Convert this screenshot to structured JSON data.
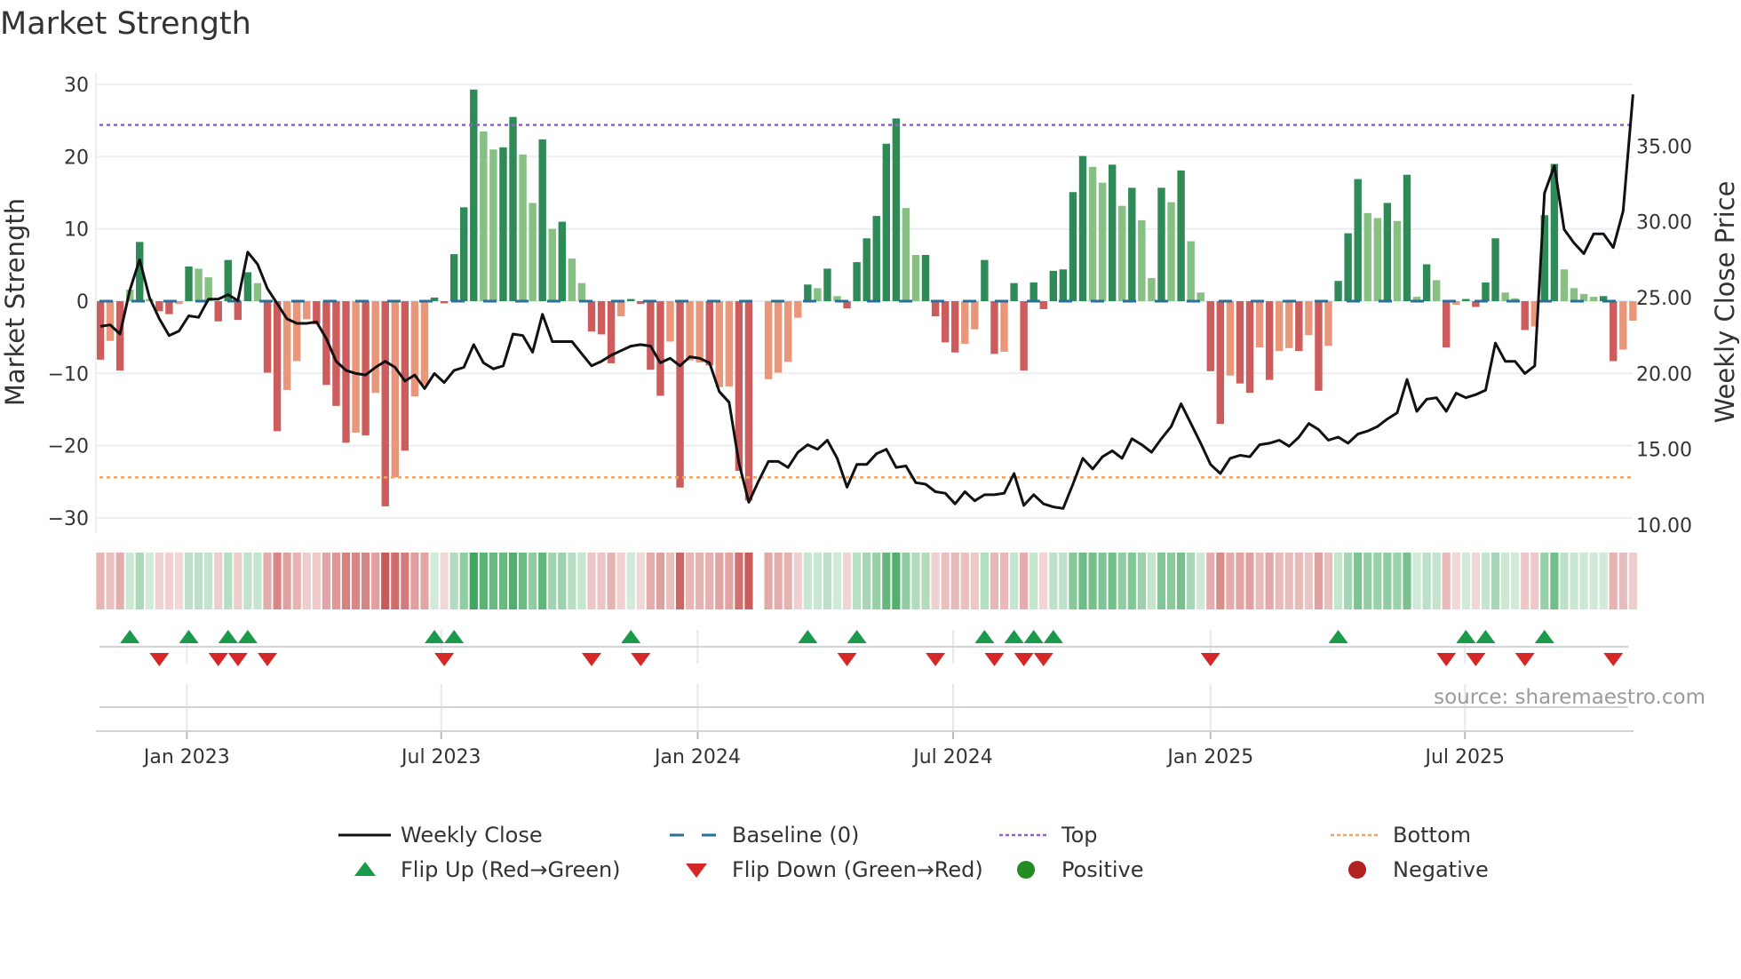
{
  "title": "Market Strength",
  "source": "source: sharemaestro.com",
  "chart_data": {
    "type": "bar",
    "title": "Market Strength",
    "ylabel": "Market Strength",
    "ylabel_right": "Weekly Close Price",
    "ylim": [
      -30,
      30
    ],
    "ylim_right": [
      10,
      35
    ],
    "yticks": [
      {
        "v": 30,
        "label": "30"
      },
      {
        "v": 20,
        "label": "20"
      },
      {
        "v": 10,
        "label": "10"
      },
      {
        "v": 0,
        "label": "0"
      },
      {
        "v": -10,
        "label": "−10"
      },
      {
        "v": -20,
        "label": "−20"
      },
      {
        "v": -30,
        "label": "−30"
      }
    ],
    "yticks_right": [
      {
        "v": 35,
        "label": "35.00"
      },
      {
        "v": 30,
        "label": "30.00"
      },
      {
        "v": 25,
        "label": "25.00"
      },
      {
        "v": 20,
        "label": "20.00"
      },
      {
        "v": 15,
        "label": "15.00"
      },
      {
        "v": 10,
        "label": "10.00"
      }
    ],
    "xticks": [
      {
        "week": 8.8,
        "label": "Jan 2023"
      },
      {
        "week": 34.7,
        "label": "Jul 2023"
      },
      {
        "week": 60.8,
        "label": "Jan 2024"
      },
      {
        "week": 86.8,
        "label": "Jul 2024"
      },
      {
        "week": 113.0,
        "label": "Jan 2025"
      },
      {
        "week": 138.9,
        "label": "Jul 2025"
      }
    ],
    "top": 24.4,
    "bottom": -24.4,
    "baseline": 0,
    "strength": [
      -8.1,
      -5.5,
      -9.6,
      1.6,
      8.2,
      0.3,
      -1.4,
      -1.8,
      -0.4,
      4.8,
      4.5,
      3.3,
      -2.8,
      5.7,
      -2.6,
      4.0,
      2.5,
      -9.9,
      -18,
      -12.3,
      -8.3,
      -2.5,
      -3.2,
      -11.6,
      -14.5,
      -19.6,
      -18.2,
      -18.6,
      -12.7,
      -28.4,
      -24.4,
      -20.7,
      -13.2,
      -11.6,
      0.5,
      -0.3,
      6.5,
      13,
      29.3,
      23.5,
      21,
      21.3,
      25.5,
      20.3,
      13.6,
      22.4,
      10,
      11,
      5.9,
      2.5,
      -4.2,
      -4.6,
      -8.6,
      -2.1,
      0.3,
      -0.4,
      -9.5,
      -13.1,
      -5.6,
      -25.8,
      -8.2,
      -8.5,
      -8.9,
      -11.9,
      -11.8,
      -23.5,
      -27.6,
      0,
      -10.8,
      -9.9,
      -8.4,
      -2.3,
      2.3,
      1.8,
      4.5,
      0.7,
      -1.0,
      5.4,
      8.7,
      11.8,
      21.8,
      25.3,
      12.9,
      6.4,
      6.4,
      -2.1,
      -5.7,
      -7.1,
      -5.9,
      -3.9,
      5.7,
      -7.3,
      -7.0,
      2.5,
      -9.6,
      2.6,
      -1.1,
      4.2,
      4.4,
      15.1,
      20.1,
      18.6,
      16.4,
      18.9,
      13.2,
      15.7,
      11.2,
      3.2,
      15.7,
      13.7,
      18.1,
      8.3,
      1.2,
      -9.7,
      -17,
      -10.3,
      -11.4,
      -12.7,
      -6.4,
      -10.9,
      -6.9,
      -6.5,
      -6.9,
      -4.7,
      -12.4,
      -6.2,
      2.8,
      9.4,
      16.9,
      12.2,
      11.5,
      13.6,
      11.1,
      17.5,
      0.6,
      5.1,
      2.9,
      -6.4,
      -0.5,
      0.3,
      -0.8,
      2.6,
      8.7,
      1.2,
      0.4,
      -4.0,
      -3.5,
      11.9,
      19,
      4.4,
      1.8,
      1.0,
      0.6,
      0.7,
      -8.3,
      -6.7,
      -2.7
    ],
    "bar_shade": "RrRgGgRRrGggRGRGgRRrrrRRRRrRrRrRrrGRGGGggGGggGgGggRRRrGRRRrRrrRrrRR-rrrrGgGgRGGGGGggGRRRrrGRrGRGRGGGGggGgGggGgGggRRrRRrRrrRrRrGGGggGgGgGgRrGRGGggRrGGggggGRrr",
    "price": [
      23.1,
      23.2,
      22.6,
      25.5,
      27.5,
      25.0,
      23.6,
      22.5,
      22.8,
      23.8,
      23.7,
      24.9,
      24.9,
      25.2,
      24.8,
      28.0,
      27.2,
      25.6,
      24.6,
      23.6,
      23.3,
      23.3,
      23.4,
      22.3,
      20.8,
      20.2,
      20.0,
      19.9,
      20.4,
      20.8,
      20.4,
      19.5,
      19.9,
      19.0,
      20.0,
      19.4,
      20.2,
      20.4,
      21.9,
      20.7,
      20.3,
      20.5,
      22.6,
      22.5,
      21.4,
      23.9,
      22.1,
      22.1,
      22.1,
      21.3,
      20.5,
      20.8,
      21.2,
      21.5,
      21.8,
      21.9,
      21.8,
      20.7,
      21.0,
      20.5,
      21.1,
      21.0,
      20.7,
      18.8,
      18.1,
      14.1,
      11.5,
      12.9,
      14.2,
      14.2,
      13.8,
      14.8,
      15.3,
      15.0,
      15.6,
      14.4,
      12.5,
      14.0,
      14.0,
      14.7,
      15.0,
      13.8,
      13.9,
      12.8,
      12.7,
      12.2,
      12.1,
      11.4,
      12.2,
      11.6,
      12.0,
      12.0,
      12.1,
      13.4,
      11.3,
      12.0,
      11.4,
      11.2,
      11.1,
      12.7,
      14.4,
      13.7,
      14.5,
      14.9,
      14.4,
      15.7,
      15.3,
      14.8,
      15.7,
      16.5,
      18.0,
      16.7,
      15.4,
      14.0,
      13.4,
      14.4,
      14.6,
      14.5,
      15.3,
      15.4,
      15.6,
      15.2,
      15.8,
      16.7,
      16.3,
      15.6,
      15.8,
      15.4,
      16.0,
      16.2,
      16.5,
      17.0,
      17.4,
      19.6,
      17.5,
      18.3,
      18.4,
      17.5,
      18.7,
      18.4,
      18.6,
      18.9,
      22.0,
      20.8,
      20.8,
      20.0,
      20.5,
      31.9,
      33.7,
      29.5,
      28.6,
      27.9,
      29.2,
      29.2,
      28.3,
      30.7,
      38.4
    ],
    "flip_up_weeks": [
      3,
      9,
      13,
      15,
      34,
      36,
      54,
      72,
      77,
      90,
      93,
      95,
      97,
      126,
      139,
      141,
      147
    ],
    "flip_down_weeks": [
      6,
      12,
      14,
      17,
      35,
      50,
      55,
      76,
      85,
      91,
      94,
      96,
      113,
      137,
      140,
      145,
      154
    ],
    "colors": {
      "bar_up_strong": "#2e8a57",
      "bar_up_weak": "#86c083",
      "bar_down_strong": "#cd5c5c",
      "bar_down_weak": "#e9967a",
      "price": "#111111",
      "baseline": "#2a6f97",
      "top": "#9b59d6",
      "bottom": "#f4a261",
      "flip_up": "#1a9a4a",
      "flip_down": "#d62728",
      "positive": "#228b22",
      "negative": "#b22222",
      "strip_pos": "#3aa55a",
      "strip_neg": "#c65352"
    },
    "legend": [
      {
        "key": "price",
        "label": "Weekly Close"
      },
      {
        "key": "baseline",
        "label": "Baseline (0)"
      },
      {
        "key": "top",
        "label": "Top"
      },
      {
        "key": "bottom",
        "label": "Bottom"
      },
      {
        "key": "flip_up",
        "label": "Flip Up (Red→Green)"
      },
      {
        "key": "flip_down",
        "label": "Flip Down (Green→Red)"
      },
      {
        "key": "positive",
        "label": "Positive"
      },
      {
        "key": "negative",
        "label": "Negative"
      }
    ],
    "legend_position": "bottom"
  }
}
